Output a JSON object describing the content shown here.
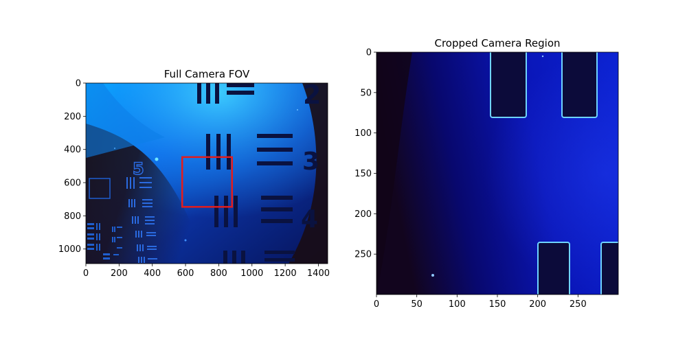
{
  "chart_data": [
    {
      "type": "image",
      "title": "Full Camera FOV",
      "xlabel": "",
      "ylabel": "",
      "xlim": [
        0,
        1456
      ],
      "ylim": [
        1088,
        0
      ],
      "xticks": [
        0,
        200,
        400,
        600,
        800,
        1000,
        1200,
        1400
      ],
      "yticks": [
        0,
        200,
        400,
        600,
        800,
        1000
      ],
      "overlay_rectangle": {
        "x0": 580,
        "y0": 446,
        "x1": 880,
        "y1": 746,
        "color": "#e41c1c"
      },
      "group_labels": [
        "2",
        "3",
        "4",
        "5"
      ]
    },
    {
      "type": "image",
      "title": "Cropped Camera Region",
      "xlabel": "",
      "ylabel": "",
      "xlim": [
        0,
        300
      ],
      "ylim": [
        300,
        0
      ],
      "xticks": [
        0,
        50,
        100,
        150,
        200,
        250
      ],
      "yticks": [
        0,
        50,
        100,
        150,
        200,
        250
      ]
    }
  ]
}
